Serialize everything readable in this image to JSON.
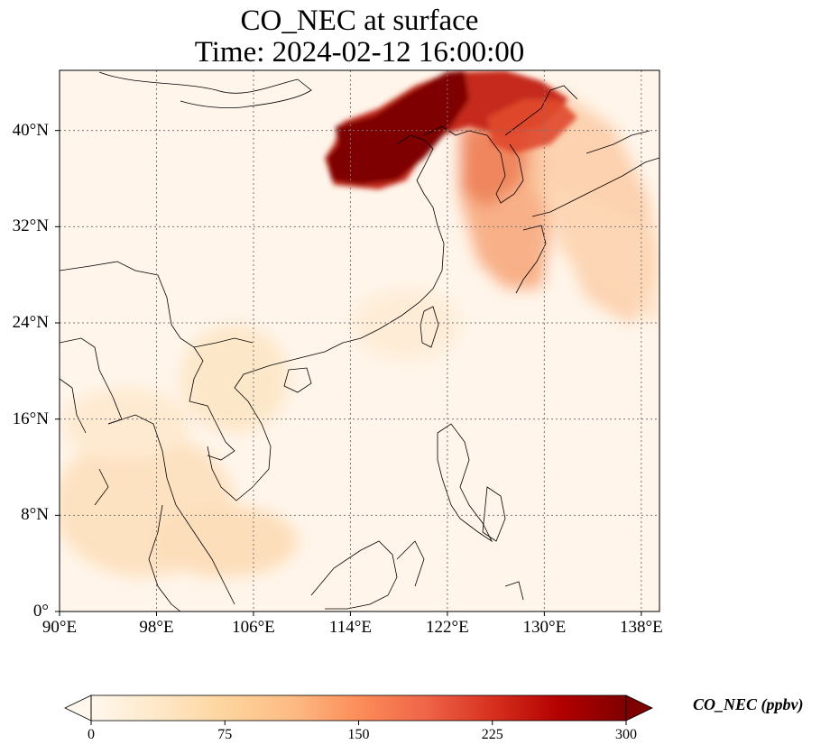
{
  "title": {
    "line1": "CO_NEC at surface",
    "line2": "Time: 2024-02-12 16:00:00"
  },
  "map": {
    "extent": {
      "lon_min": 90,
      "lon_max": 139.5,
      "lat_min": 0,
      "lat_max": 45
    },
    "lat_ticks": [
      {
        "value": 40,
        "label": "40°N"
      },
      {
        "value": 32,
        "label": "32°N"
      },
      {
        "value": 24,
        "label": "24°N"
      },
      {
        "value": 16,
        "label": "16°N"
      },
      {
        "value": 8,
        "label": "8°N"
      },
      {
        "value": 0,
        "label": "0°"
      }
    ],
    "lon_ticks": [
      {
        "value": 90,
        "label": "90°E"
      },
      {
        "value": 98,
        "label": "98°E"
      },
      {
        "value": 106,
        "label": "106°E"
      },
      {
        "value": 114,
        "label": "114°E"
      },
      {
        "value": 122,
        "label": "122°E"
      },
      {
        "value": 130,
        "label": "130°E"
      },
      {
        "value": 138,
        "label": "138°E"
      }
    ],
    "gridlines": true
  },
  "colorbar": {
    "label": "CO_NEC (ppbv)",
    "ticks": [
      "0",
      "75",
      "150",
      "225",
      "300"
    ],
    "min": 0,
    "max": 300,
    "extend": "both",
    "colormap": [
      "#fff7ec",
      "#fee8c8",
      "#fdd49e",
      "#fdbb84",
      "#fc8d59",
      "#ef6548",
      "#d7301f",
      "#b30000",
      "#7f0000"
    ]
  }
}
